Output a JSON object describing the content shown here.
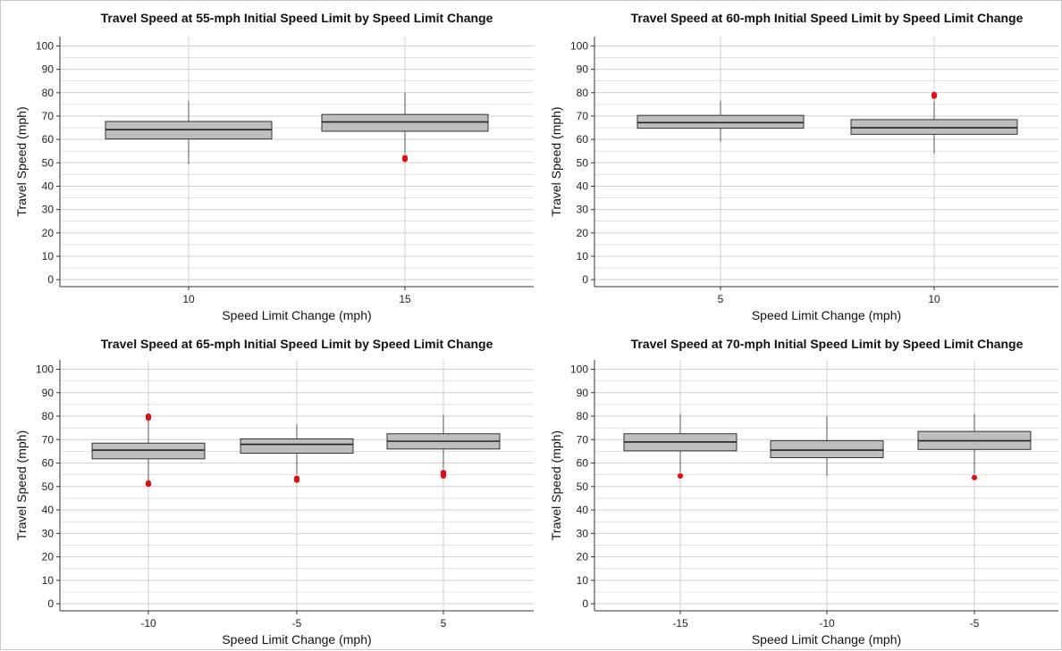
{
  "chart_data": [
    {
      "type": "box",
      "title": "Travel Speed at 55-mph Initial Speed Limit by Speed Limit Change",
      "xlabel": "Speed Limit Change (mph)",
      "ylabel": "Travel Speed (mph)",
      "ylim": [
        -3,
        104
      ],
      "yticks": [
        0,
        10,
        20,
        30,
        40,
        50,
        60,
        70,
        80,
        90,
        100
      ],
      "grid": true,
      "categories": [
        "10",
        "15"
      ],
      "boxes": [
        {
          "category": "10",
          "min": 49.5,
          "q1": 60.2,
          "median": 64.2,
          "q3": 67.7,
          "max": 76.5,
          "outliers": []
        },
        {
          "category": "15",
          "min": 54.0,
          "q1": 63.5,
          "median": 67.5,
          "q3": 70.7,
          "max": 80.0,
          "outliers": [
            51.5,
            52.2
          ]
        }
      ]
    },
    {
      "type": "box",
      "title": "Travel Speed at 60-mph Initial Speed Limit by Speed Limit Change",
      "xlabel": "Speed Limit Change (mph)",
      "ylabel": "Travel Speed (mph)",
      "ylim": [
        -3,
        104
      ],
      "yticks": [
        0,
        10,
        20,
        30,
        40,
        50,
        60,
        70,
        80,
        90,
        100
      ],
      "grid": true,
      "categories": [
        "5",
        "10"
      ],
      "boxes": [
        {
          "category": "5",
          "min": 59.0,
          "q1": 64.8,
          "median": 67.2,
          "q3": 70.3,
          "max": 76.5,
          "outliers": []
        },
        {
          "category": "10",
          "min": 54.0,
          "q1": 62.2,
          "median": 65.0,
          "q3": 68.5,
          "max": 76.5,
          "outliers": [
            78.5,
            79.2
          ]
        }
      ]
    },
    {
      "type": "box",
      "title": "Travel Speed at 65-mph Initial Speed Limit by Speed Limit Change",
      "xlabel": "Speed Limit Change (mph)",
      "ylabel": "Travel Speed (mph)",
      "ylim": [
        -3,
        104
      ],
      "yticks": [
        0,
        10,
        20,
        30,
        40,
        50,
        60,
        70,
        80,
        90,
        100
      ],
      "grid": true,
      "categories": [
        "-10",
        "-5",
        "5"
      ],
      "boxes": [
        {
          "category": "-10",
          "min": 52.5,
          "q1": 61.8,
          "median": 65.5,
          "q3": 68.5,
          "max": 78.5,
          "outliers": [
            51.0,
            51.5,
            79.2,
            80.0
          ]
        },
        {
          "category": "-5",
          "min": 55.5,
          "q1": 64.2,
          "median": 68.0,
          "q3": 70.3,
          "max": 76.5,
          "outliers": [
            52.7,
            53.5
          ]
        },
        {
          "category": "5",
          "min": 57.5,
          "q1": 66.0,
          "median": 69.3,
          "q3": 72.5,
          "max": 80.5,
          "outliers": [
            54.5,
            55.2,
            56.0
          ]
        }
      ]
    },
    {
      "type": "box",
      "title": "Travel Speed at 70-mph Initial Speed Limit by Speed Limit Change",
      "xlabel": "Speed Limit Change (mph)",
      "ylabel": "Travel Speed (mph)",
      "ylim": [
        -3,
        104
      ],
      "yticks": [
        0,
        10,
        20,
        30,
        40,
        50,
        60,
        70,
        80,
        90,
        100
      ],
      "grid": true,
      "categories": [
        "-15",
        "-10",
        "-5"
      ],
      "boxes": [
        {
          "category": "-15",
          "min": 56.0,
          "q1": 65.2,
          "median": 69.0,
          "q3": 72.5,
          "max": 81.0,
          "outliers": [
            54.5
          ]
        },
        {
          "category": "-10",
          "min": 54.5,
          "q1": 62.3,
          "median": 65.5,
          "q3": 69.5,
          "max": 80.0,
          "outliers": []
        },
        {
          "category": "-5",
          "min": 55.5,
          "q1": 65.8,
          "median": 69.5,
          "q3": 73.5,
          "max": 81.0,
          "outliers": [
            53.8
          ]
        }
      ]
    }
  ],
  "colors": {
    "box_fill": "#bebebe",
    "box_stroke": "#333333",
    "grid": "#cfcfcf",
    "outlier": "#e01010"
  }
}
